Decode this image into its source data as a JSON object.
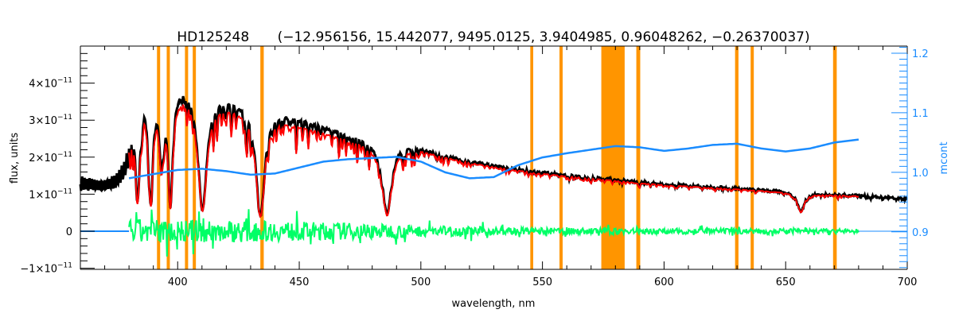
{
  "chart_data": {
    "type": "line",
    "title_object": "HD125248",
    "title_params": "(−12.956156, 15.442077, 9495.0125, 3.9404985, 0.96048262, −0.26370037)",
    "xlabel": "wavelength, nm",
    "ylabel": "flux, units",
    "y2label": "mcont",
    "xlim": [
      360,
      700
    ],
    "ylim": [
      -1.03,
      5.0
    ],
    "y_scale_note": "x10^-11",
    "y2lim": [
      0.837,
      1.212
    ],
    "xticks": [
      400,
      450,
      500,
      550,
      600,
      650,
      700
    ],
    "xtick_labels": [
      "400",
      "450",
      "500",
      "550",
      "600",
      "650",
      "700"
    ],
    "yticks": [
      -1,
      0,
      1,
      2,
      3,
      4
    ],
    "ytick_labels": [
      {
        "mant": "−1×10",
        "exp": "−11"
      },
      {
        "mant": "0",
        "exp": ""
      },
      {
        "mant": "1×10",
        "exp": "−11"
      },
      {
        "mant": "2×10",
        "exp": "−11"
      },
      {
        "mant": "3×10",
        "exp": "−11"
      },
      {
        "mant": "4×10",
        "exp": "−11"
      }
    ],
    "y2ticks": [
      0.9,
      1.0,
      1.1,
      1.2
    ],
    "y2tick_labels": [
      "0.9",
      "1.0",
      "1.1",
      "1.2"
    ],
    "masked_regions_nm": [
      [
        391.5,
        392.8
      ],
      [
        395.5,
        396.8
      ],
      [
        403,
        404.3
      ],
      [
        406.2,
        407.5
      ],
      [
        434,
        435.4
      ],
      [
        545,
        546.2
      ],
      [
        557,
        558.3
      ],
      [
        574.2,
        583.8
      ],
      [
        588.6,
        590.2
      ],
      [
        629.2,
        630.6
      ],
      [
        635.6,
        636.9
      ],
      [
        669.5,
        671
      ]
    ],
    "observed_continuum": {
      "x": [
        360,
        370,
        375,
        378,
        380,
        383,
        386,
        390,
        395,
        400,
        405,
        410,
        415,
        420,
        430,
        440,
        450,
        460,
        470,
        480,
        484,
        488,
        490,
        495,
        500,
        510,
        520,
        530,
        540,
        550,
        560,
        570,
        580,
        590,
        600,
        620,
        640,
        660,
        680,
        700
      ],
      "y": [
        1.5,
        1.5,
        1.65,
        2.0,
        2.6,
        3.9,
        4.2,
        4.3,
        4.25,
        4.2,
        4.15,
        3.95,
        3.75,
        3.65,
        3.5,
        3.3,
        3.05,
        2.85,
        2.65,
        2.45,
        2.35,
        2.35,
        2.4,
        2.35,
        2.25,
        2.05,
        1.9,
        1.78,
        1.68,
        1.6,
        1.52,
        1.46,
        1.4,
        1.33,
        1.28,
        1.2,
        1.12,
        1.03,
        0.97,
        0.87
      ]
    },
    "strong_lines": [
      {
        "nm": 383.5,
        "depth": 0.78
      },
      {
        "nm": 388.9,
        "depth": 0.8
      },
      {
        "nm": 393.4,
        "depth": 0.55
      },
      {
        "nm": 397.0,
        "depth": 0.82
      },
      {
        "nm": 410.2,
        "depth": 0.85
      },
      {
        "nm": 434.0,
        "depth": 0.86
      },
      {
        "nm": 486.1,
        "depth": 0.8
      },
      {
        "nm": 656.3,
        "depth": 0.5
      }
    ],
    "model_offset_fraction": 0.06,
    "continuum_function": {
      "x": [
        380,
        390,
        400,
        410,
        420,
        430,
        440,
        450,
        460,
        470,
        480,
        490,
        500,
        510,
        520,
        530,
        540,
        550,
        560,
        570,
        580,
        590,
        600,
        610,
        620,
        630,
        640,
        650,
        660,
        670,
        680
      ],
      "y": [
        0.99,
        0.997,
        1.004,
        1.006,
        1.002,
        0.996,
        0.998,
        1.008,
        1.018,
        1.022,
        1.024,
        1.026,
        1.018,
        1.0,
        0.99,
        0.992,
        1.012,
        1.025,
        1.032,
        1.038,
        1.044,
        1.042,
        1.036,
        1.04,
        1.046,
        1.048,
        1.04,
        1.035,
        1.04,
        1.05,
        1.055
      ]
    },
    "residual_range_nm": [
      380,
      680
    ],
    "residual_amplitude": {
      "x": [
        380,
        420,
        480,
        500,
        550,
        680
      ],
      "y": [
        0.55,
        0.5,
        0.35,
        0.25,
        0.15,
        0.1
      ]
    },
    "series": [
      {
        "name": "observed",
        "color": "#000000"
      },
      {
        "name": "model",
        "color": "#ff0000"
      },
      {
        "name": "masked-fit",
        "color": "#ffff00"
      },
      {
        "name": "residual",
        "color": "#00ff66"
      },
      {
        "name": "continuum",
        "color": "#1a8cff"
      },
      {
        "name": "mask",
        "color": "#ff9500"
      }
    ]
  }
}
